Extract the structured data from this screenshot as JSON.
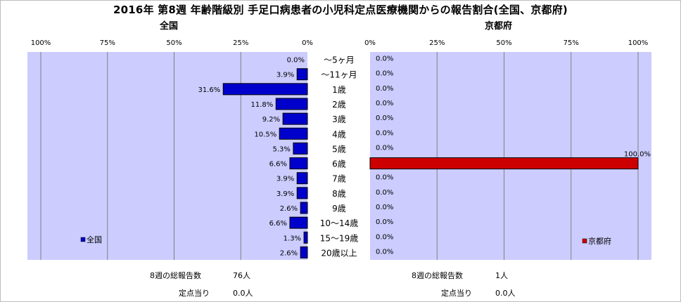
{
  "title": "2016年 第8週 年齢階級別 手足口病患者の小児科定点医療機関からの報告割合(全国、京都府)",
  "colors": {
    "plot_bg": "#ccccff",
    "grid": "#808080",
    "national_bar": "#0000cc",
    "kyoto_bar": "#cc0000",
    "bar_edge": "#000000"
  },
  "chart_data": [
    {
      "type": "bar",
      "orientation": "horizontal",
      "x_direction": "reversed",
      "title": "全国",
      "categories": [
        "～5ヶ月",
        "～11ヶ月",
        "1歳",
        "2歳",
        "3歳",
        "4歳",
        "5歳",
        "6歳",
        "7歳",
        "8歳",
        "9歳",
        "10～14歳",
        "15～19歳",
        "20歳以上"
      ],
      "series": [
        {
          "name": "全国",
          "values": [
            0.0,
            3.9,
            31.6,
            11.8,
            9.2,
            10.5,
            5.3,
            6.6,
            3.9,
            3.9,
            2.6,
            6.6,
            1.3,
            2.6
          ],
          "labels": [
            "0.0%",
            "3.9%",
            "31.6%",
            "11.8%",
            "9.2%",
            "10.5%",
            "5.3%",
            "6.6%",
            "3.9%",
            "3.9%",
            "2.6%",
            "6.6%",
            "1.3%",
            "2.6%"
          ]
        }
      ],
      "xlim": [
        0,
        100
      ],
      "xticks": [
        100,
        75,
        50,
        25,
        0
      ],
      "xtick_labels": [
        "100%",
        "75%",
        "50%",
        "25%",
        "0%"
      ],
      "grid": true,
      "legend": "bottom-left"
    },
    {
      "type": "bar",
      "orientation": "horizontal",
      "title": "京都府",
      "categories": [
        "～5ヶ月",
        "～11ヶ月",
        "1歳",
        "2歳",
        "3歳",
        "4歳",
        "5歳",
        "6歳",
        "7歳",
        "8歳",
        "9歳",
        "10～14歳",
        "15～19歳",
        "20歳以上"
      ],
      "series": [
        {
          "name": "京都府",
          "values": [
            0.0,
            0.0,
            0.0,
            0.0,
            0.0,
            0.0,
            0.0,
            100.0,
            0.0,
            0.0,
            0.0,
            0.0,
            0.0,
            0.0
          ],
          "labels": [
            "0.0%",
            "0.0%",
            "0.0%",
            "0.0%",
            "0.0%",
            "0.0%",
            "0.0%",
            "100.0%",
            "0.0%",
            "0.0%",
            "0.0%",
            "0.0%",
            "0.0%",
            "0.0%"
          ]
        }
      ],
      "xlim": [
        0,
        100
      ],
      "xticks": [
        0,
        25,
        50,
        75,
        100
      ],
      "xtick_labels": [
        "0%",
        "25%",
        "50%",
        "75%",
        "100%"
      ],
      "grid": true,
      "legend": "bottom-right"
    }
  ],
  "footer": {
    "national": {
      "total_label": "8週の総報告数",
      "total_value": "76人",
      "per_label": "定点当り",
      "per_value": "0.0人"
    },
    "kyoto": {
      "total_label": "8週の総報告数",
      "total_value": "1人",
      "per_label": "定点当り",
      "per_value": "0.0人"
    }
  }
}
